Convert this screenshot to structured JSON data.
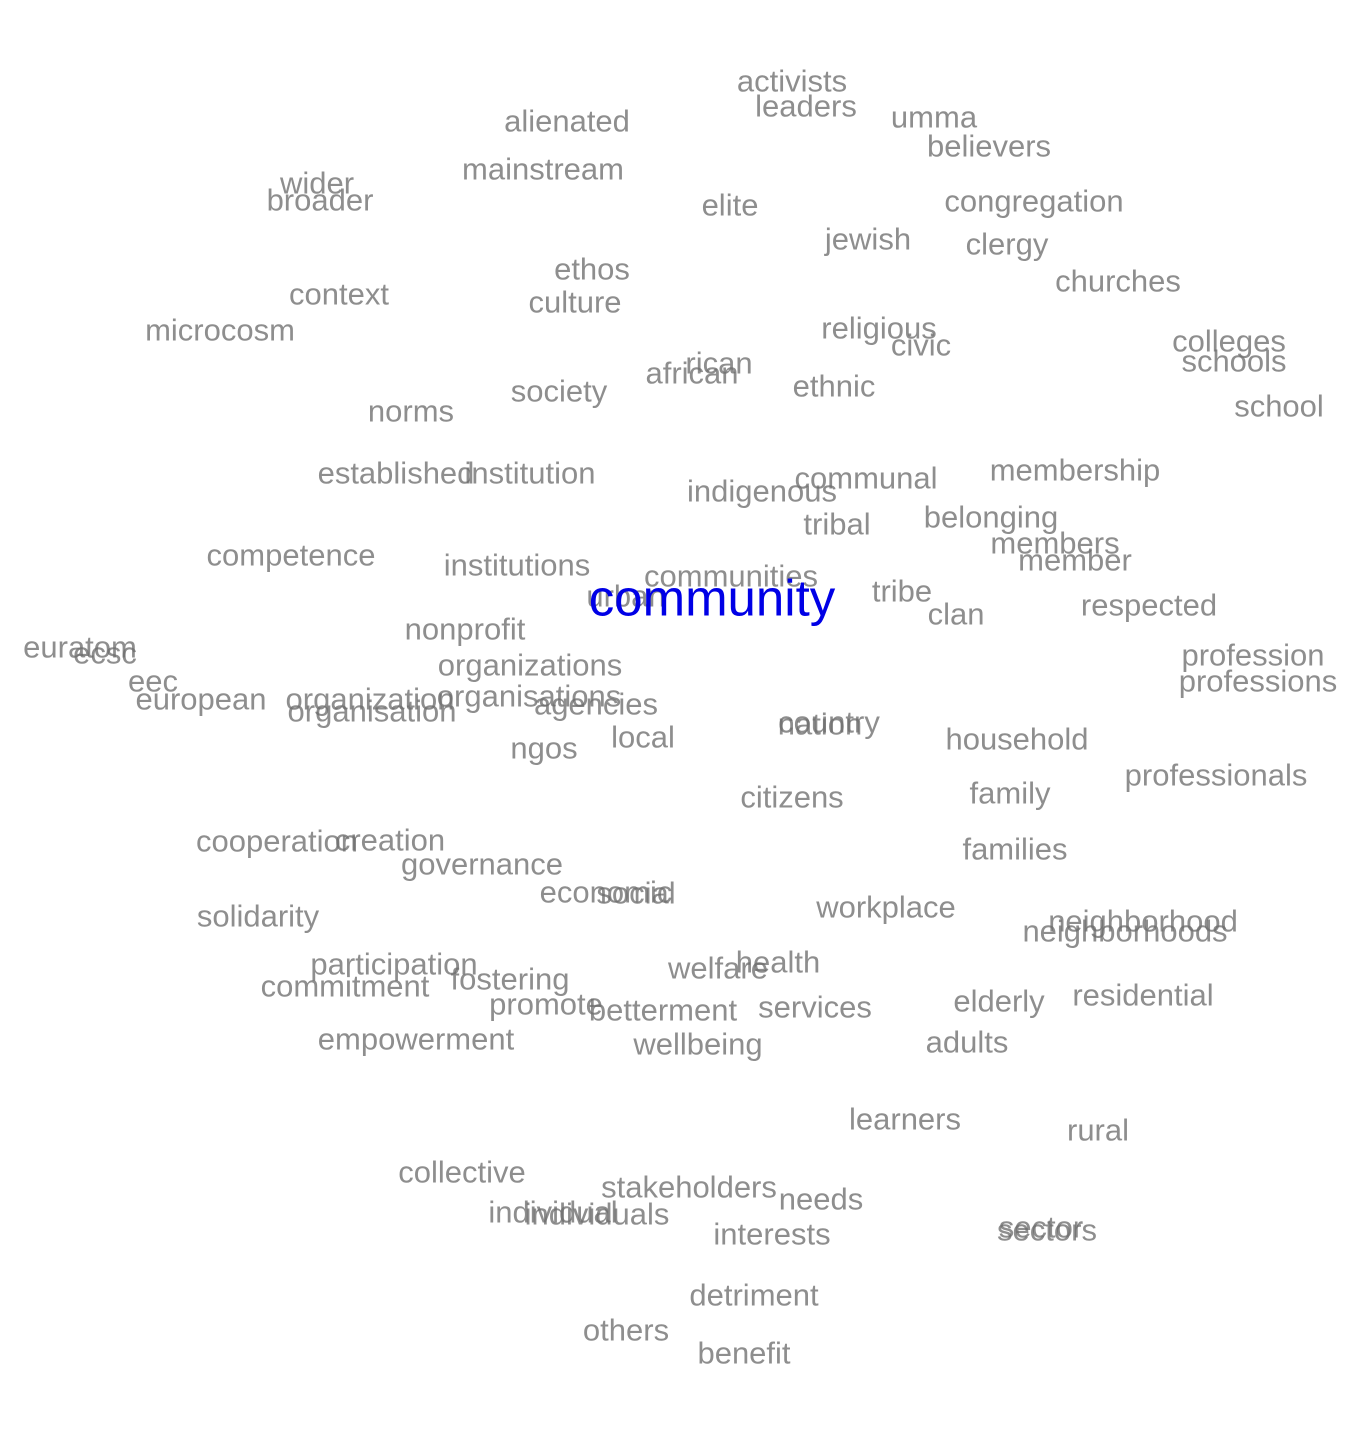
{
  "focus_word": {
    "text": "community",
    "color": "#0000e6"
  },
  "word_color": "#6e6e6e",
  "words": [
    "activists",
    "leaders",
    "alienated",
    "umma",
    "believers",
    "mainstream",
    "wider",
    "broader",
    "elite",
    "congregation",
    "jewish",
    "clergy",
    "ethos",
    "churches",
    "context",
    "culture",
    "religious",
    "microcosm",
    "colleges",
    "civic",
    "schools",
    "rican",
    "african",
    "ethnic",
    "society",
    "norms",
    "school",
    "established",
    "institution",
    "membership",
    "communal",
    "indigenous",
    "belonging",
    "tribal",
    "competence",
    "members",
    "institutions",
    "member",
    "communities",
    "tribe",
    "urban",
    "respected",
    "clan",
    "nonprofit",
    "euratom",
    "ecsc",
    "profession",
    "organizations",
    "eec",
    "professions",
    "european",
    "organization",
    "organisations",
    "agencies",
    "organisation",
    "country",
    "nation",
    "local",
    "household",
    "ngos",
    "professionals",
    "family",
    "citizens",
    "cooperation",
    "creation",
    "families",
    "governance",
    "economic",
    "social",
    "workplace",
    "solidarity",
    "neighborhood",
    "neighborhoods",
    "participation",
    "health",
    "fostering",
    "welfare",
    "commitment",
    "residential",
    "elderly",
    "promote",
    "betterment",
    "services",
    "empowerment",
    "adults",
    "wellbeing",
    "learners",
    "rural",
    "collective",
    "stakeholders",
    "needs",
    "individual",
    "individuals",
    "sector",
    "sectors",
    "interests",
    "detriment",
    "others",
    "benefit"
  ]
}
